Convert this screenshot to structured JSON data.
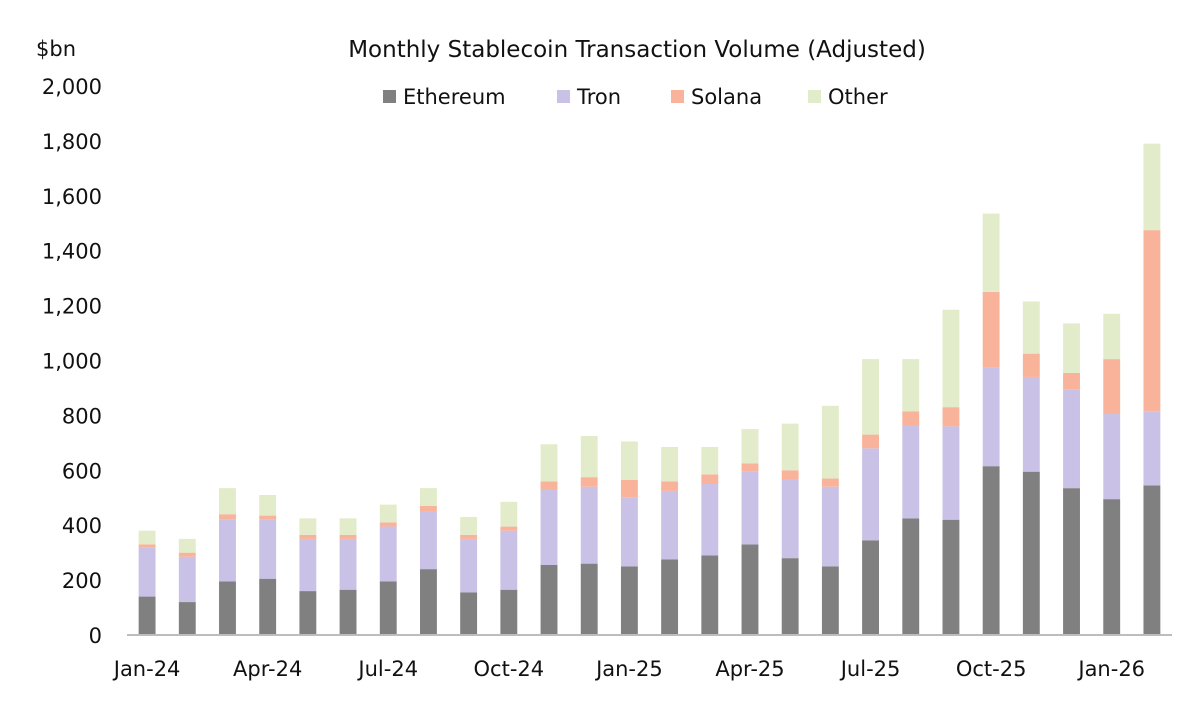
{
  "chart_data": {
    "type": "bar",
    "stacked": true,
    "title": "Monthly Stablecoin Transaction Volume (Adjusted)",
    "ylabel": "$bn",
    "xlabel": "",
    "ylim": [
      0,
      2000
    ],
    "y_ticks": [
      0,
      200,
      400,
      600,
      800,
      1000,
      1200,
      1400,
      1600,
      1800,
      2000
    ],
    "y_tick_labels": [
      "0",
      "200",
      "400",
      "600",
      "800",
      "1,000",
      "1,200",
      "1,400",
      "1,600",
      "1,800",
      "2,000"
    ],
    "grid": false,
    "legend_position": "top",
    "categories": [
      "Jan-24",
      "Feb-24",
      "Mar-24",
      "Apr-24",
      "May-24",
      "Jun-24",
      "Jul-24",
      "Aug-24",
      "Sep-24",
      "Oct-24",
      "Nov-24",
      "Dec-24",
      "Jan-25",
      "Feb-25",
      "Mar-25",
      "Apr-25",
      "May-25",
      "Jun-25",
      "Jul-25",
      "Aug-25",
      "Sep-25",
      "Oct-25",
      "Nov-25",
      "Dec-25",
      "Jan-26",
      "Feb-26"
    ],
    "x_tick_labels": [
      {
        "index": 0,
        "label": "Jan-24"
      },
      {
        "index": 3,
        "label": "Apr-24"
      },
      {
        "index": 6,
        "label": "Jul-24"
      },
      {
        "index": 9,
        "label": "Oct-24"
      },
      {
        "index": 12,
        "label": "Jan-25"
      },
      {
        "index": 15,
        "label": "Apr-25"
      },
      {
        "index": 18,
        "label": "Jul-25"
      },
      {
        "index": 21,
        "label": "Oct-25"
      },
      {
        "index": 24,
        "label": "Jan-26"
      }
    ],
    "series": [
      {
        "name": "Ethereum",
        "color": "#808080",
        "values": [
          140,
          120,
          195,
          205,
          160,
          165,
          195,
          240,
          155,
          165,
          255,
          260,
          250,
          275,
          290,
          330,
          280,
          250,
          345,
          425,
          420,
          615,
          595,
          535,
          495,
          545
        ]
      },
      {
        "name": "Tron",
        "color": "#c9c1e6",
        "values": [
          180,
          165,
          225,
          215,
          190,
          185,
          200,
          210,
          195,
          215,
          275,
          280,
          250,
          250,
          260,
          265,
          285,
          290,
          335,
          340,
          340,
          360,
          345,
          360,
          310,
          270
        ]
      },
      {
        "name": "Solana",
        "color": "#f9b39b",
        "values": [
          10,
          15,
          20,
          15,
          15,
          15,
          15,
          20,
          15,
          15,
          30,
          35,
          65,
          35,
          35,
          30,
          35,
          30,
          50,
          50,
          70,
          275,
          85,
          60,
          200,
          660
        ]
      },
      {
        "name": "Other",
        "color": "#e2ecca",
        "values": [
          50,
          50,
          95,
          75,
          60,
          60,
          65,
          65,
          65,
          90,
          135,
          150,
          140,
          125,
          100,
          125,
          170,
          265,
          275,
          190,
          355,
          285,
          190,
          180,
          165,
          315
        ]
      }
    ]
  }
}
